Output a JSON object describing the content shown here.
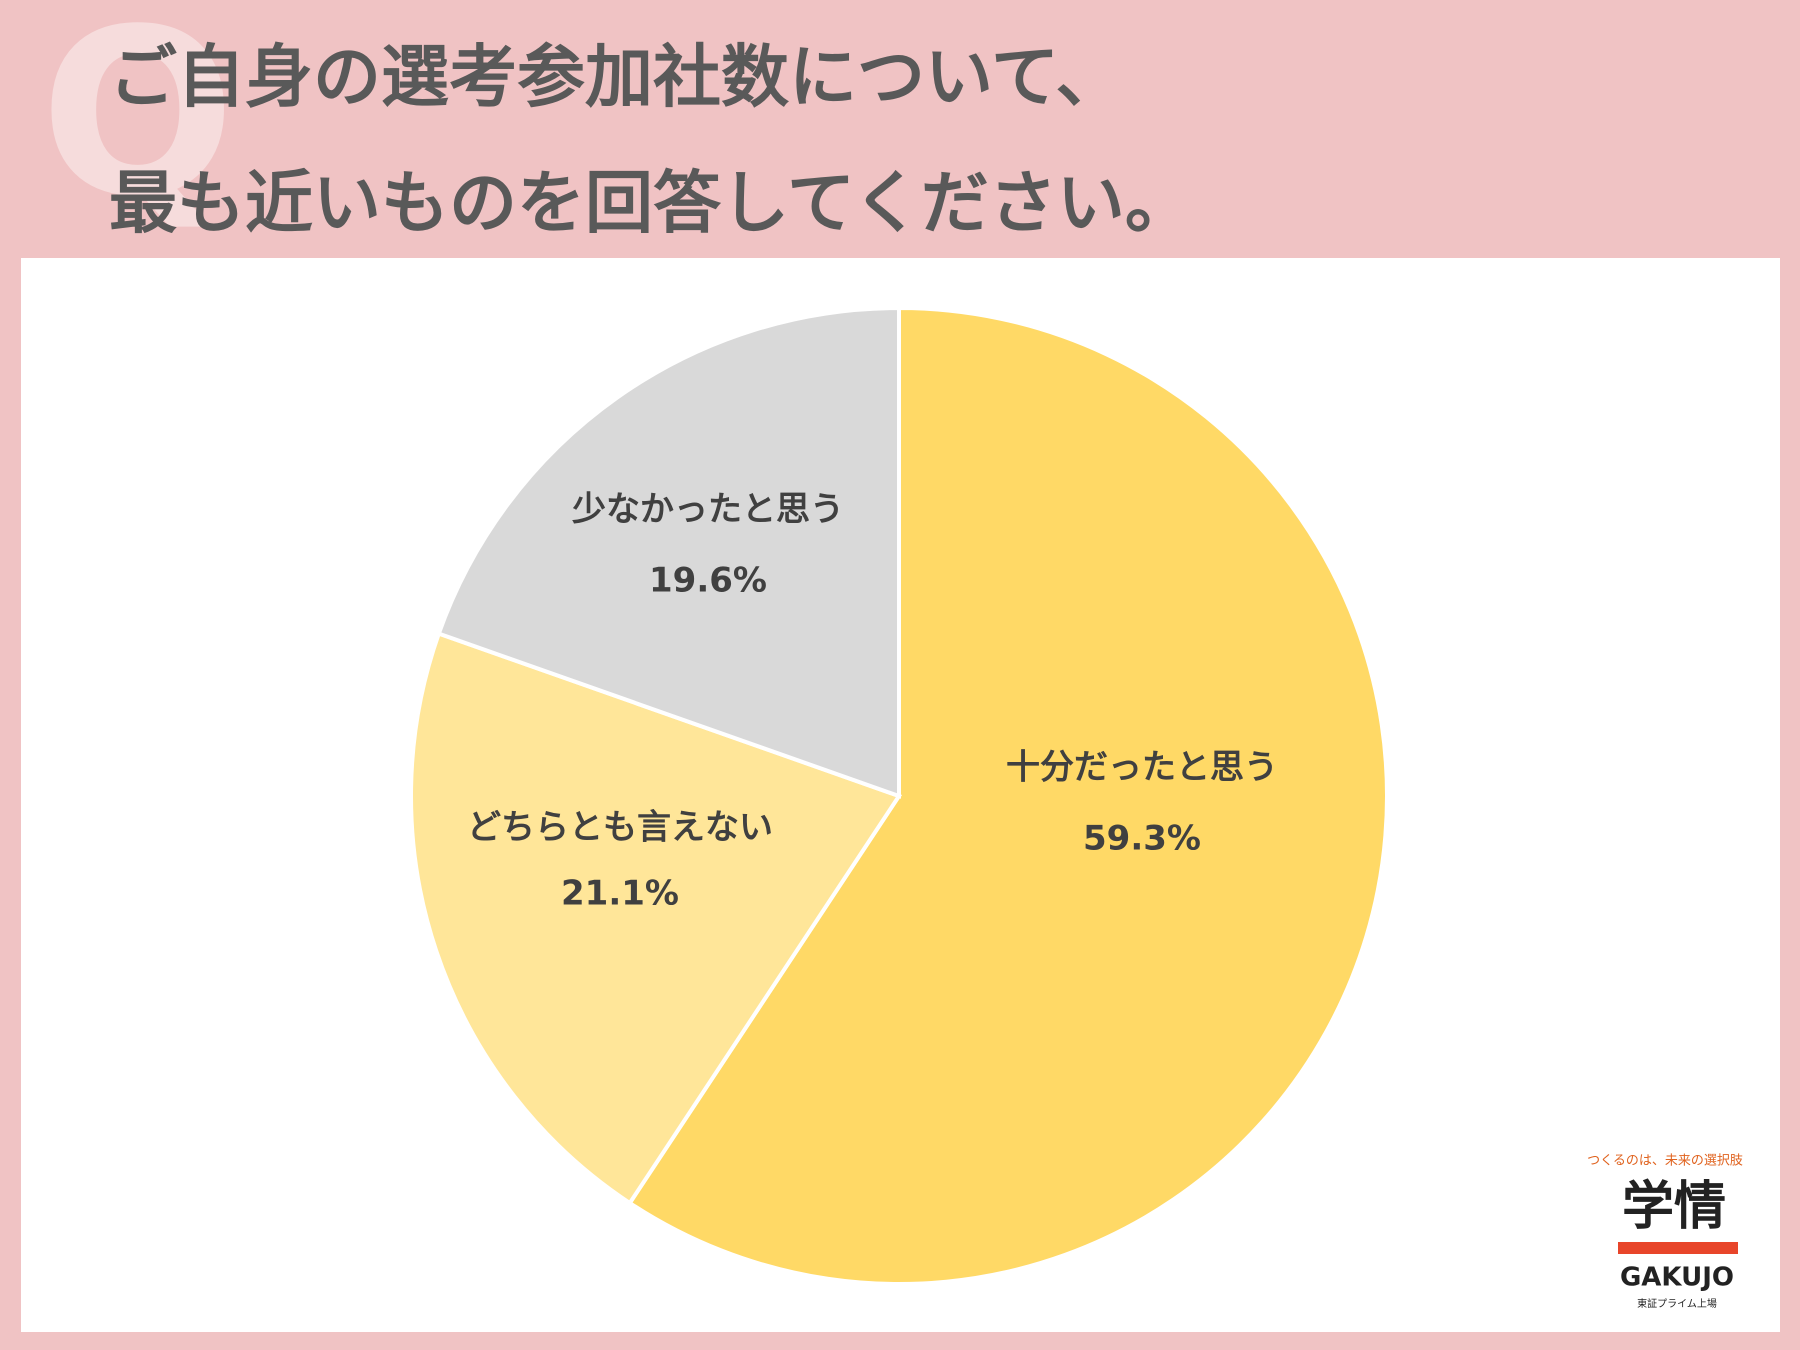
{
  "badge": "Q",
  "chart_data": {
    "type": "pie",
    "title": [
      "ご自身の選考参加社数について、",
      "最も近いものを回答してください。"
    ],
    "categories": [
      "十分だったと思う",
      "どちらとも言えない",
      "少なかったと思う"
    ],
    "values": [
      59.3,
      21.1,
      19.6
    ],
    "value_labels": [
      "59.3%",
      "21.1%",
      "19.6%"
    ],
    "colors": [
      "#ffd966",
      "#ffe699",
      "#d9d9d9"
    ]
  },
  "logo": {
    "tagline": "つくるのは、未来の選択肢",
    "name": "学情",
    "roman": "GAKUJO",
    "listing": "東証プライム上場"
  }
}
